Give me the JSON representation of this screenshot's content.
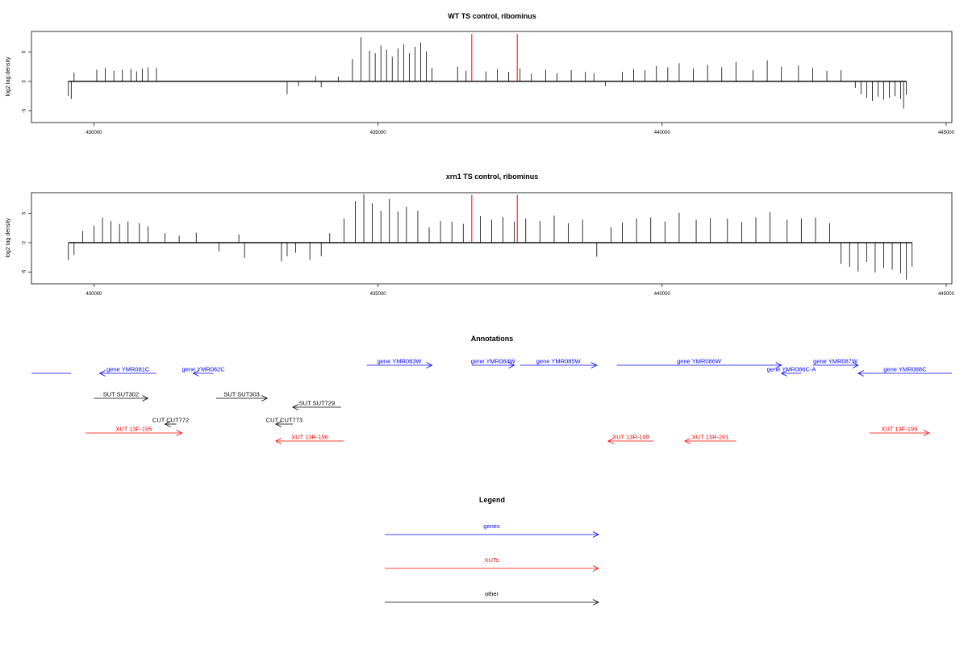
{
  "colors": {
    "gene": "#0000ff",
    "xut": "#ff0000",
    "other": "#000000",
    "marker": "#ff0000"
  },
  "chart_data": [
    {
      "type": "bar",
      "title": "WT TS control, ribominus",
      "ylabel": "log2 tag density",
      "xlim": [
        428900,
        445100
      ],
      "ylim": [
        -7,
        8.5
      ],
      "xticks": [
        430000,
        435000,
        440000,
        445000
      ],
      "xtick_labels": [
        "430000",
        "435000",
        "440000",
        "445000"
      ],
      "yticks": [
        -5,
        0,
        5
      ],
      "ytick_labels": [
        "-5",
        "0",
        "5"
      ],
      "markers": [
        436650,
        437450
      ],
      "x": [
        429550,
        429600,
        429650,
        430050,
        430200,
        430350,
        430500,
        430650,
        430750,
        430850,
        430950,
        431100,
        433400,
        433600,
        433900,
        434000,
        434300,
        434550,
        434700,
        434850,
        434950,
        435050,
        435150,
        435250,
        435350,
        435450,
        435550,
        435650,
        435750,
        435850,
        435950,
        436400,
        436550,
        436900,
        437100,
        437300,
        437500,
        437700,
        437950,
        438150,
        438400,
        438650,
        438800,
        439000,
        439300,
        439500,
        439700,
        439900,
        440100,
        440300,
        440550,
        440800,
        441050,
        441300,
        441600,
        441850,
        442100,
        442400,
        442650,
        442900,
        443150,
        443400,
        443500,
        443600,
        443700,
        443800,
        443900,
        444000,
        444100,
        444200,
        444250,
        444300
      ],
      "y": [
        -2.5,
        -3,
        1.5,
        2,
        2.3,
        1.8,
        2,
        2.1,
        1.7,
        2.2,
        2.4,
        2.3,
        -2.2,
        -0.8,
        0.9,
        -1,
        0.8,
        3.8,
        7.5,
        5.2,
        4.8,
        6.1,
        5.4,
        4.2,
        5.6,
        6.3,
        4.8,
        5.9,
        6.6,
        5.1,
        2.3,
        2.5,
        1.8,
        1.7,
        2.1,
        1.6,
        2.2,
        1.3,
        2,
        1.4,
        1.9,
        1.6,
        1.4,
        -0.8,
        1.6,
        2.1,
        1.9,
        2.6,
        2.4,
        3.1,
        2.2,
        2.8,
        2.4,
        3.3,
        1.9,
        3.6,
        2.5,
        2.7,
        2.3,
        1.8,
        1.9,
        -1.1,
        -2.2,
        -2.8,
        -3.3,
        -2.6,
        -3.1,
        -2.8,
        -2.5,
        -3,
        -4.6,
        -2.3
      ]
    },
    {
      "type": "bar",
      "title": "xrn1 TS control, ribominus",
      "ylabel": "log2 tag density",
      "xlim": [
        428900,
        445100
      ],
      "ylim": [
        -7,
        8.5
      ],
      "xticks": [
        430000,
        435000,
        440000,
        445000
      ],
      "xtick_labels": [
        "430000",
        "435000",
        "440000",
        "445000"
      ],
      "yticks": [
        -5,
        0,
        5
      ],
      "ytick_labels": [
        "-5",
        "0",
        "5"
      ],
      "markers": [
        436650,
        437450
      ],
      "x": [
        429550,
        429650,
        429800,
        430000,
        430150,
        430300,
        430450,
        430600,
        430800,
        430950,
        431250,
        431500,
        431800,
        432200,
        432550,
        432650,
        433300,
        433400,
        433550,
        433800,
        434000,
        434150,
        434400,
        434600,
        434750,
        434900,
        435050,
        435200,
        435350,
        435500,
        435700,
        435900,
        436100,
        436300,
        436500,
        436800,
        437000,
        437200,
        437400,
        437600,
        437850,
        438100,
        438350,
        438600,
        438850,
        439100,
        439300,
        439550,
        439800,
        440050,
        440300,
        440600,
        440850,
        441150,
        441400,
        441650,
        441900,
        442200,
        442450,
        442700,
        442950,
        443150,
        443300,
        443450,
        443600,
        443750,
        443900,
        444050,
        444200,
        444300,
        444400
      ],
      "y": [
        -3,
        -2.1,
        2,
        2.9,
        4.3,
        3.7,
        3.2,
        3.6,
        3.3,
        2.8,
        1.6,
        1.2,
        1.7,
        -1.5,
        1.4,
        -2.6,
        -3.2,
        -2.3,
        -1.7,
        -2.9,
        -2.3,
        1.6,
        4.1,
        7.1,
        8.2,
        6.7,
        5.4,
        7.4,
        5.3,
        6.1,
        5.4,
        2.6,
        3.7,
        3.6,
        3.2,
        4.5,
        3.9,
        4.4,
        3.6,
        4.1,
        3.7,
        4.6,
        3.3,
        3.9,
        -2.4,
        2.6,
        3.4,
        4.1,
        4.3,
        3.6,
        5.1,
        3.9,
        4.2,
        4.1,
        3.5,
        4.3,
        5.2,
        3.9,
        4.1,
        4.3,
        3.3,
        -3.6,
        -4.1,
        -4.9,
        -3.3,
        -5.1,
        -4.3,
        -4.6,
        -5.2,
        -6.3,
        -4.1
      ]
    }
  ],
  "annotations": {
    "title": "Annotations",
    "features": [
      {
        "name": "",
        "type": "gene",
        "strand": "",
        "start": 428900,
        "end": 429600,
        "row": 2
      },
      {
        "name": "gene YMR081C",
        "type": "gene",
        "strand": "-",
        "start": 430100,
        "end": 431100,
        "row": 2
      },
      {
        "name": "gene YMR082C",
        "type": "gene",
        "strand": "-",
        "start": 431750,
        "end": 432100,
        "row": 2
      },
      {
        "name": "gene YMR083W",
        "type": "gene",
        "strand": "+",
        "start": 434800,
        "end": 435950,
        "row": 1
      },
      {
        "name": "gene YMR084W",
        "type": "gene",
        "strand": "+",
        "start": 436650,
        "end": 437400,
        "row": 1
      },
      {
        "name": "gene YMR085W",
        "type": "gene",
        "strand": "+",
        "start": 437500,
        "end": 438850,
        "row": 1
      },
      {
        "name": "gene YMR086W",
        "type": "gene",
        "strand": "+",
        "start": 439200,
        "end": 442100,
        "row": 1
      },
      {
        "name": "gene YMR086C-A",
        "type": "gene",
        "strand": "-",
        "start": 442100,
        "end": 442450,
        "row": 2
      },
      {
        "name": "gene YMR087W",
        "type": "gene",
        "strand": "+",
        "start": 442650,
        "end": 443450,
        "row": 1
      },
      {
        "name": "gene YMR088C",
        "type": "gene",
        "strand": "-",
        "start": 443450,
        "end": 445100,
        "row": 2
      },
      {
        "name": "SUT SUT302",
        "type": "other",
        "strand": "+",
        "start": 430000,
        "end": 430950,
        "row": 3
      },
      {
        "name": "SUT SUT303",
        "type": "other",
        "strand": "+",
        "start": 432150,
        "end": 433050,
        "row": 3
      },
      {
        "name": "SUT SUT729",
        "type": "other",
        "strand": "-",
        "start": 433500,
        "end": 434350,
        "row": 4
      },
      {
        "name": "CUT CUT772",
        "type": "other",
        "strand": "-",
        "start": 431250,
        "end": 431450,
        "row": 5
      },
      {
        "name": "CUT CUT773",
        "type": "other",
        "strand": "-",
        "start": 433200,
        "end": 433500,
        "row": 5
      },
      {
        "name": "XUT 13F-195",
        "type": "xut",
        "strand": "+",
        "start": 429850,
        "end": 431550,
        "row": 6
      },
      {
        "name": "XUT 13R-196",
        "type": "xut",
        "strand": "-",
        "start": 433200,
        "end": 434400,
        "row": 7
      },
      {
        "name": "XUT 13R-199",
        "type": "xut",
        "strand": "-",
        "start": 439050,
        "end": 439850,
        "row": 7
      },
      {
        "name": "XUT 13R-201",
        "type": "xut",
        "strand": "-",
        "start": 440400,
        "end": 441300,
        "row": 7
      },
      {
        "name": "XUT 13F-199",
        "type": "xut",
        "strand": "+",
        "start": 443650,
        "end": 444700,
        "row": 6
      }
    ]
  },
  "legend": {
    "title": "Legend",
    "items": [
      {
        "label": "genes",
        "type": "gene"
      },
      {
        "label": "XUTs",
        "type": "xut"
      },
      {
        "label": "other",
        "type": "other"
      }
    ]
  }
}
